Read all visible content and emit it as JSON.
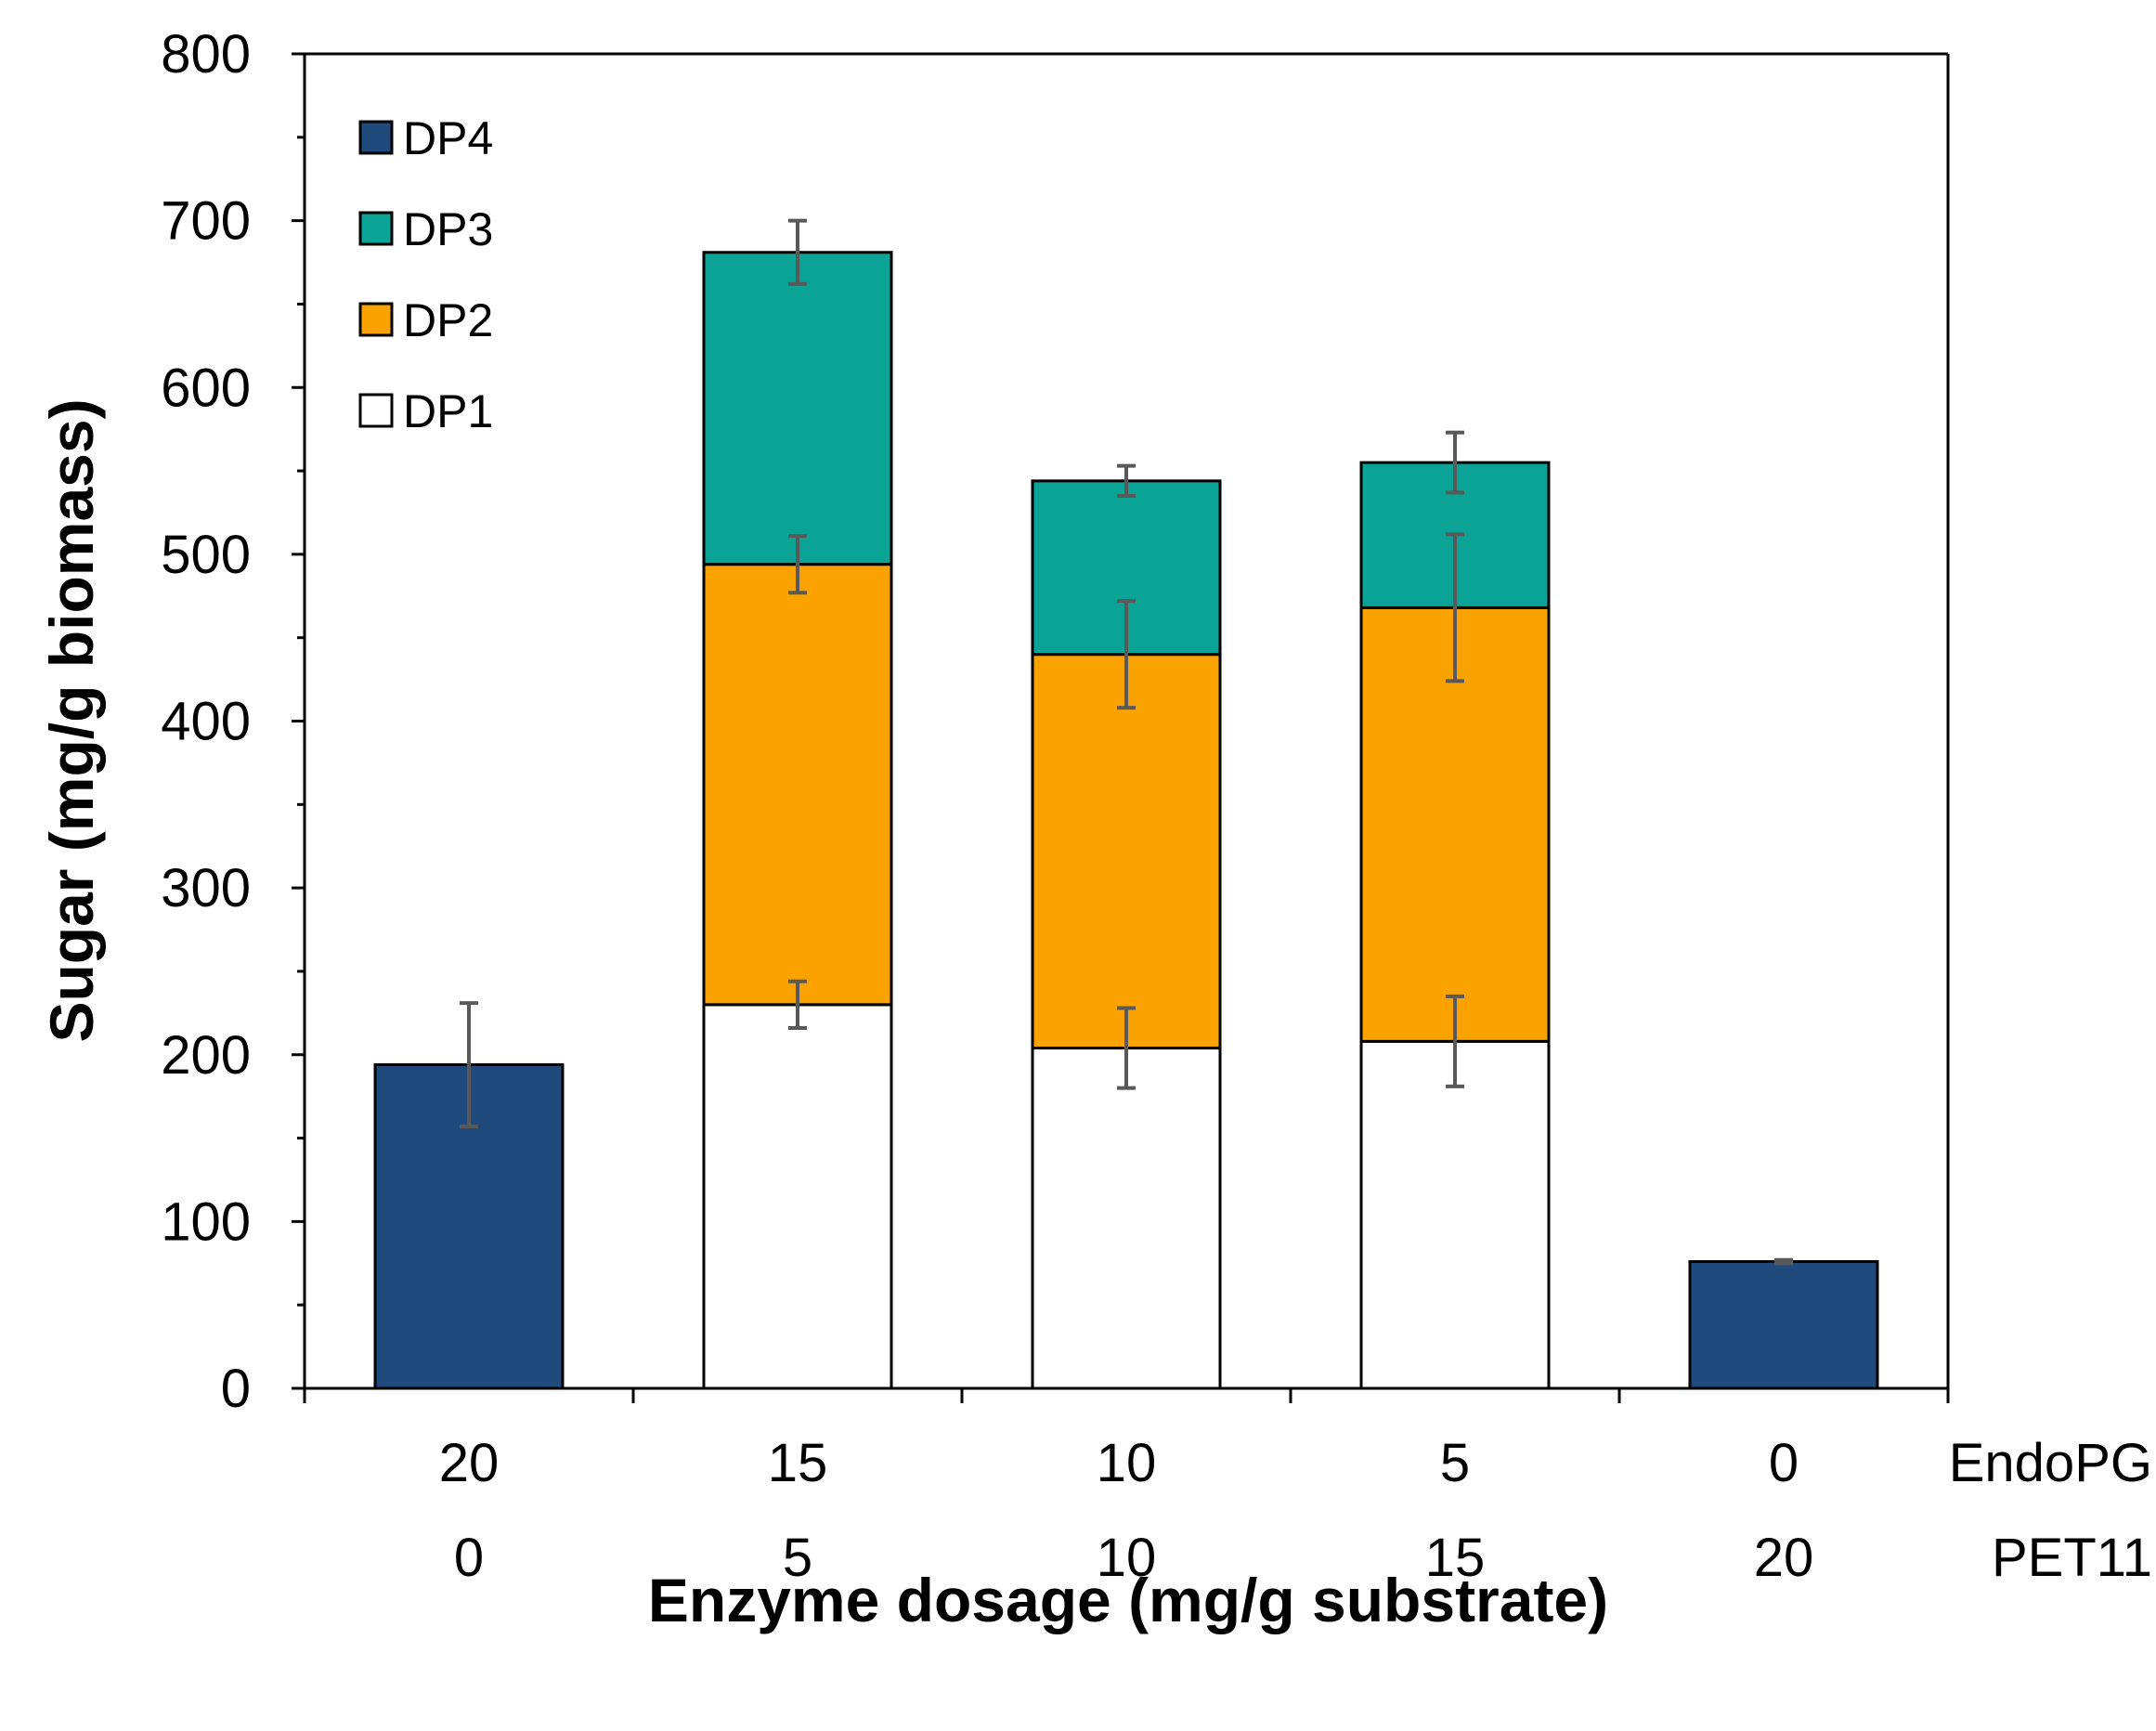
{
  "chart_data": {
    "type": "bar",
    "stacked": true,
    "xlabel": "Enzyme dosage (mg/g substrate)",
    "ylabel": "Sugar (mg/g biomass)",
    "ylim": [
      0,
      800
    ],
    "yticks": [
      "0",
      "100",
      "200",
      "300",
      "400",
      "500",
      "600",
      "700",
      "800"
    ],
    "category_rows": [
      {
        "label": "EndoPG",
        "values": [
          "20",
          "15",
          "10",
          "5",
          "0"
        ]
      },
      {
        "label": "PET11",
        "values": [
          "0",
          "5",
          "10",
          "15",
          "20"
        ]
      }
    ],
    "series": [
      {
        "name": "DP1",
        "color": "#FFFFFF",
        "values": [
          0,
          230,
          204,
          208,
          0
        ],
        "errors": [
          null,
          14,
          24,
          27,
          null
        ]
      },
      {
        "name": "DP2",
        "color": "#F9A200",
        "values": [
          0,
          264,
          236,
          260,
          0
        ],
        "errors": [
          null,
          17,
          32,
          44,
          null
        ]
      },
      {
        "name": "DP3",
        "color": "#0AA396",
        "values": [
          0,
          187,
          104,
          87,
          0
        ],
        "errors": [
          null,
          19,
          9,
          18,
          null
        ]
      },
      {
        "name": "DP4",
        "color": "#204A7C",
        "values": [
          194,
          0,
          0,
          0,
          76
        ],
        "errors": [
          37,
          null,
          null,
          null,
          1
        ]
      }
    ],
    "legend_position": "top-left",
    "grid": false
  }
}
